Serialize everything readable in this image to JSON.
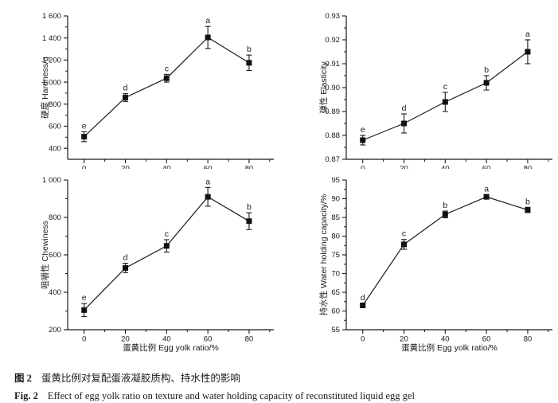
{
  "figure": {
    "background": "#ffffff",
    "caption": {
      "zh_label": "图 2",
      "zh_text": "蛋黄比例对复配蛋液凝胶质构、持水性的影响",
      "en_label": "Fig. 2",
      "en_text": "Effect of egg yolk ratio on texture and water holding capacity of reconstituted liquid egg gel"
    }
  },
  "colors": {
    "line": "#1a1a1a",
    "marker": "#111111",
    "text": "#1a1a1a",
    "background": "#ffffff"
  },
  "chart_data": [
    {
      "type": "line",
      "name": "hardness",
      "ylabel": "硬度 Hardness/g",
      "xlabel": "",
      "x": [
        0,
        20,
        40,
        60,
        80
      ],
      "values": [
        505,
        860,
        1035,
        1405,
        1175
      ],
      "errors": [
        45,
        35,
        35,
        100,
        70
      ],
      "point_labels": [
        "e",
        "d",
        "c",
        "a",
        "b"
      ],
      "ylim": [
        300,
        1600
      ],
      "yticks": [
        400,
        600,
        800,
        1000,
        1200,
        1400,
        1600
      ],
      "ytick_labels": [
        "400",
        "600",
        "800",
        "1 000",
        "1 200",
        "1 400",
        "1 600"
      ],
      "xlim": [
        -8,
        92
      ],
      "xticks": [
        0,
        20,
        40,
        60,
        80
      ],
      "xtick_labels": [
        "0",
        "20",
        "40",
        "60",
        "80"
      ],
      "marker": "square",
      "error_bars": true,
      "grid": false,
      "legend": "none"
    },
    {
      "type": "line",
      "name": "elasticity",
      "ylabel": "弹性 Elasticity",
      "xlabel": "",
      "x": [
        0,
        20,
        40,
        60,
        80
      ],
      "values": [
        0.878,
        0.885,
        0.894,
        0.902,
        0.915
      ],
      "errors": [
        0.002,
        0.004,
        0.004,
        0.003,
        0.005
      ],
      "point_labels": [
        "e",
        "d",
        "c",
        "b",
        "a"
      ],
      "ylim": [
        0.87,
        0.93
      ],
      "yticks": [
        0.87,
        0.88,
        0.89,
        0.9,
        0.91,
        0.92,
        0.93
      ],
      "ytick_labels": [
        "0.87",
        "0.88",
        "0.89",
        "0.90",
        "0.91",
        "0.92",
        "0.93"
      ],
      "xlim": [
        -8,
        92
      ],
      "xticks": [
        0,
        20,
        40,
        60,
        80
      ],
      "xtick_labels": [
        "0",
        "20",
        "40",
        "60",
        "80"
      ],
      "marker": "square",
      "error_bars": true,
      "grid": false,
      "legend": "none"
    },
    {
      "type": "line",
      "name": "chewiness",
      "ylabel": "咀嚼性 Chewiness",
      "xlabel": "蛋黄比例 Egg yolk ratio/%",
      "x": [
        0,
        20,
        40,
        60,
        80
      ],
      "values": [
        305,
        530,
        648,
        910,
        780
      ],
      "errors": [
        35,
        25,
        33,
        50,
        45
      ],
      "point_labels": [
        "e",
        "d",
        "c",
        "a",
        "b"
      ],
      "ylim": [
        200,
        1000
      ],
      "yticks": [
        200,
        400,
        600,
        800,
        1000
      ],
      "ytick_labels": [
        "200",
        "400",
        "600",
        "800",
        "1 000"
      ],
      "xlim": [
        -8,
        92
      ],
      "xticks": [
        0,
        20,
        40,
        60,
        80
      ],
      "xtick_labels": [
        "0",
        "20",
        "40",
        "60",
        "80"
      ],
      "marker": "square",
      "error_bars": true,
      "grid": false,
      "legend": "none"
    },
    {
      "type": "line",
      "name": "water-holding-capacity",
      "ylabel": "持水性 Water holding capacity/%",
      "xlabel": "蛋黄比例 Egg yolk ratio/%",
      "x": [
        0,
        20,
        40,
        60,
        80
      ],
      "values": [
        61.5,
        77.8,
        85.8,
        90.5,
        87.0
      ],
      "errors": [
        0.5,
        1.3,
        0.9,
        0.6,
        0.7
      ],
      "point_labels": [
        "d",
        "c",
        "b",
        "a",
        "b"
      ],
      "ylim": [
        55,
        95
      ],
      "yticks": [
        55,
        60,
        65,
        70,
        75,
        80,
        85,
        90,
        95
      ],
      "ytick_labels": [
        "55",
        "60",
        "65",
        "70",
        "75",
        "80",
        "85",
        "90",
        "95"
      ],
      "xlim": [
        -8,
        92
      ],
      "xticks": [
        0,
        20,
        40,
        60,
        80
      ],
      "xtick_labels": [
        "0",
        "20",
        "40",
        "60",
        "80"
      ],
      "marker": "square",
      "error_bars": true,
      "grid": false,
      "legend": "none"
    }
  ]
}
